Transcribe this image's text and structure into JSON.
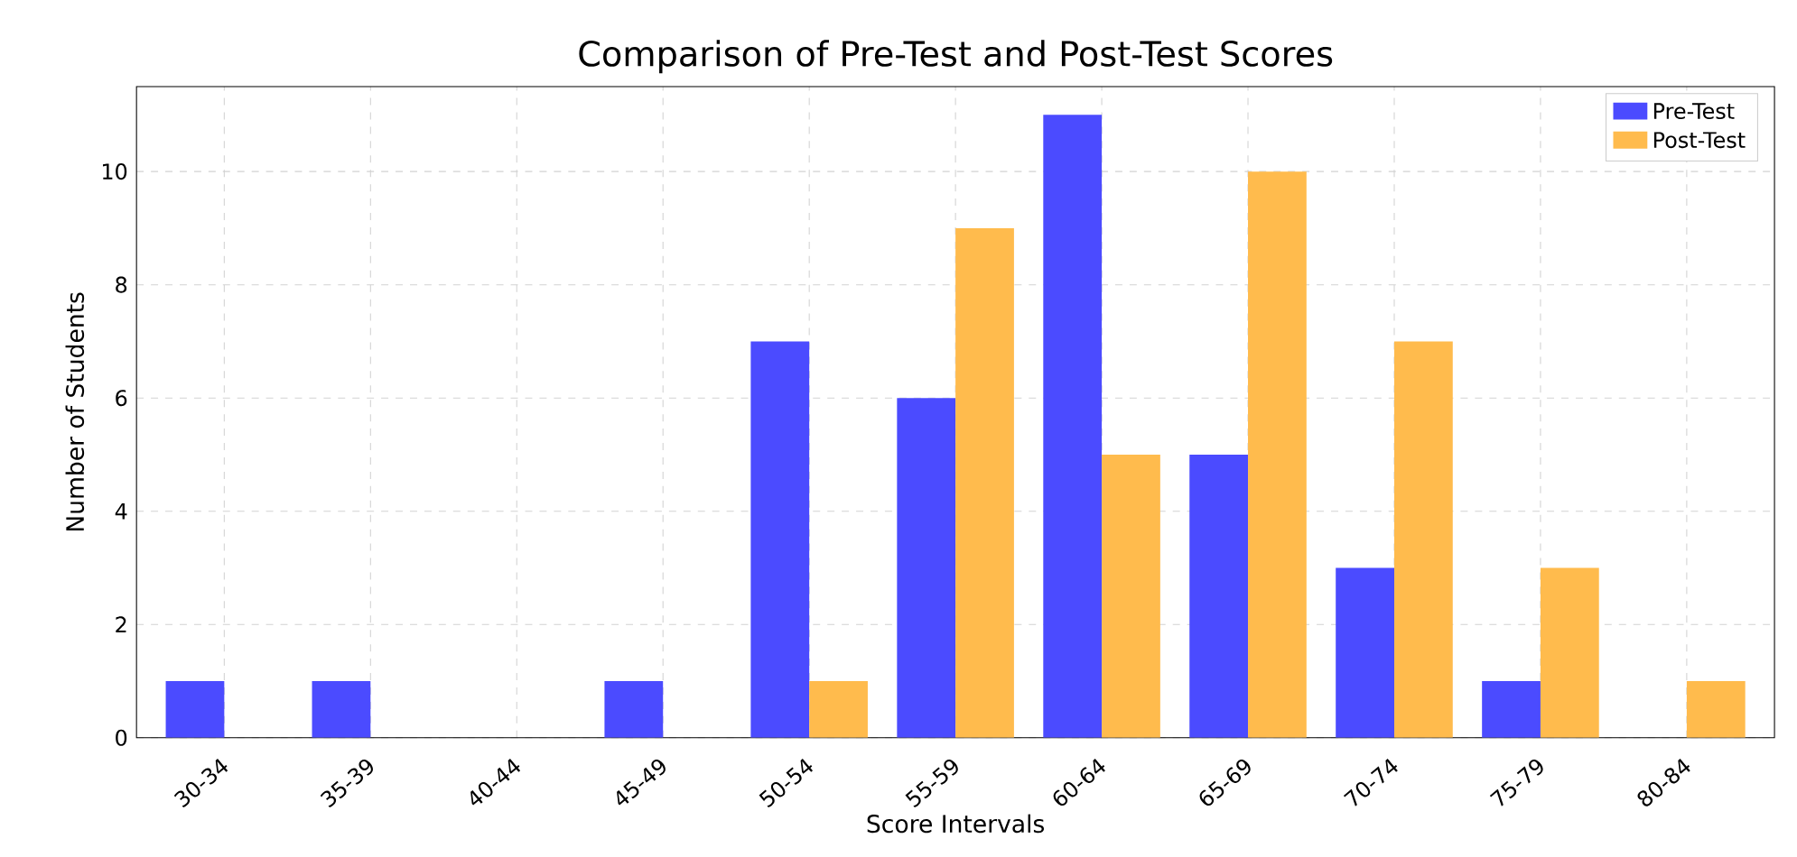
{
  "chart_data": {
    "type": "bar",
    "title": "Comparison of Pre-Test and Post-Test Scores",
    "xlabel": "Score Intervals",
    "ylabel": "Number of Students",
    "categories": [
      "30-34",
      "35-39",
      "40-44",
      "45-49",
      "50-54",
      "55-59",
      "60-64",
      "65-69",
      "70-74",
      "75-79",
      "80-84"
    ],
    "series": [
      {
        "name": "Pre-Test",
        "color": "#4b4bff",
        "values": [
          1,
          1,
          0,
          1,
          7,
          6,
          11,
          5,
          3,
          1,
          0
        ]
      },
      {
        "name": "Post-Test",
        "color": "#ffbb4d",
        "values": [
          0,
          0,
          0,
          0,
          1,
          9,
          5,
          10,
          7,
          3,
          1
        ]
      }
    ],
    "ylim": [
      0,
      11.5
    ],
    "yticks": [
      0,
      2,
      4,
      6,
      8,
      10
    ],
    "grid": true,
    "legend": "top right"
  }
}
